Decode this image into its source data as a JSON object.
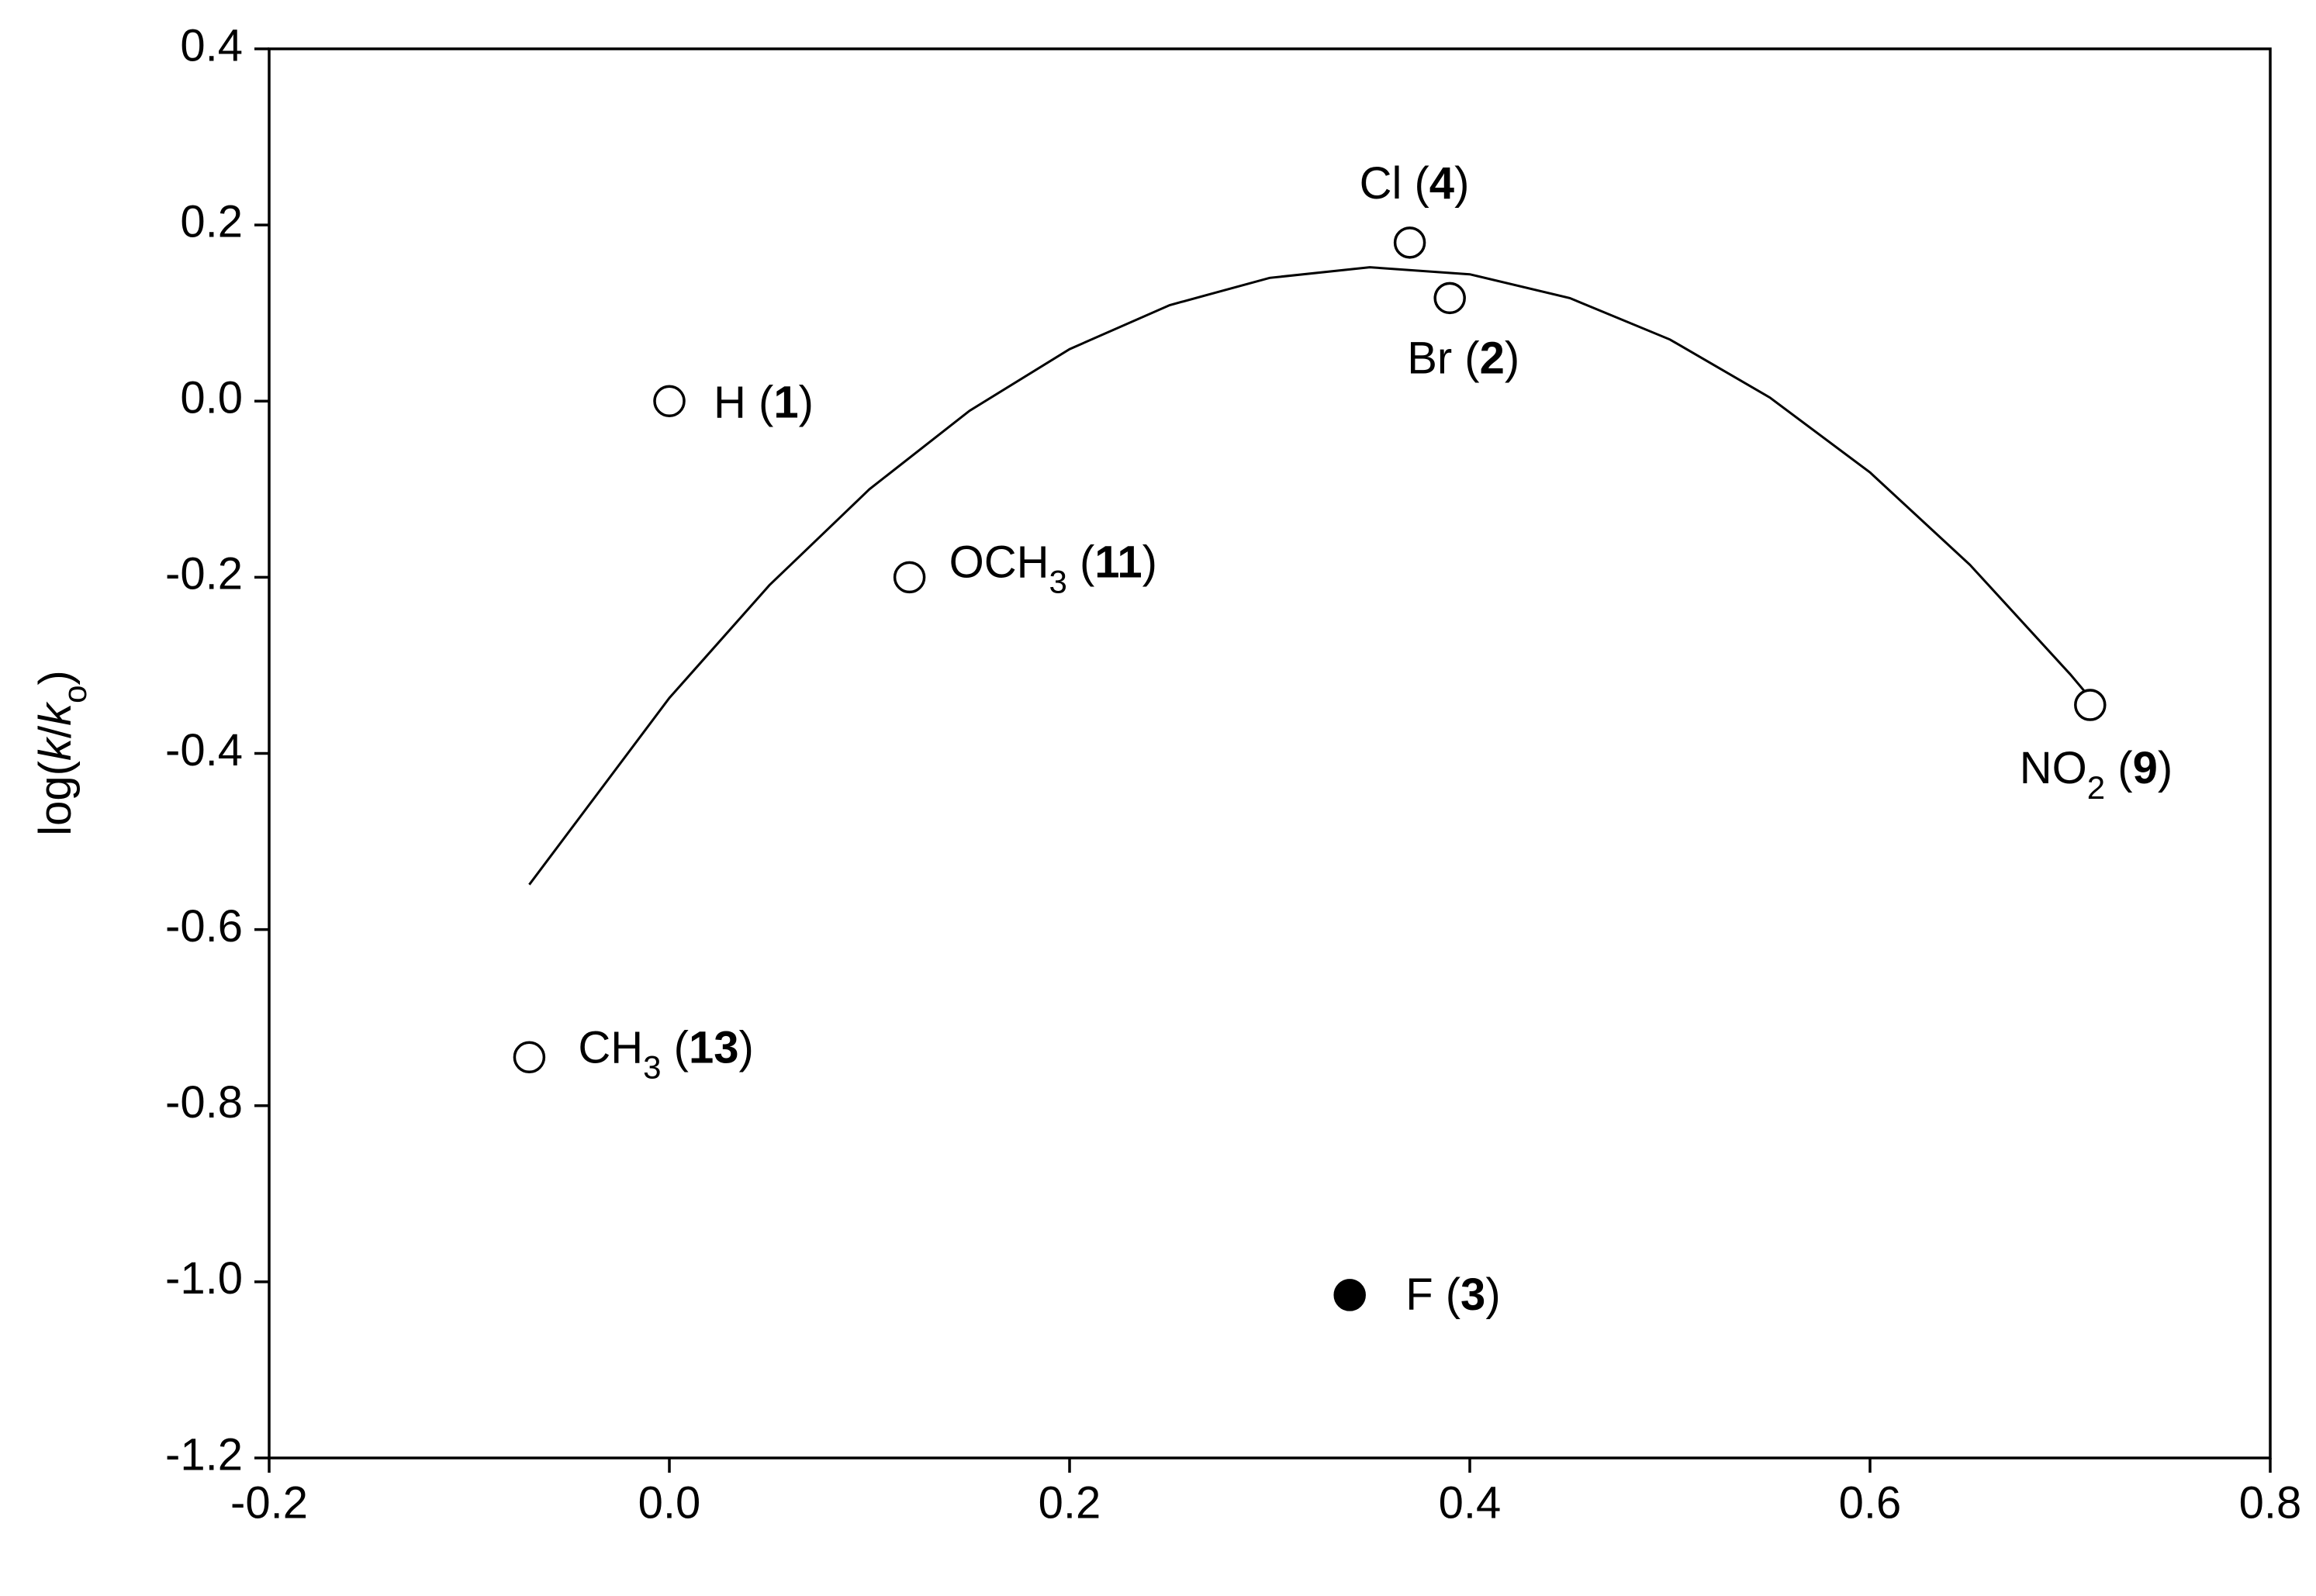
{
  "chart_data": {
    "type": "scatter",
    "ylabel": [
      {
        "t": "log("
      },
      {
        "t": "k",
        "italic": true
      },
      {
        "t": "/"
      },
      {
        "t": "k",
        "italic": true
      },
      {
        "t": "o",
        "sub": true
      },
      {
        "t": ")"
      }
    ],
    "xlim": [
      -0.2,
      0.8
    ],
    "ylim": [
      -1.2,
      0.4
    ],
    "xticks": [
      -0.2,
      {
        "value": 0,
        "label": "0.0"
      },
      0.2,
      0.4,
      0.6,
      0.8
    ],
    "yticks": [
      -1.2,
      {
        "value": -1,
        "label": "-1.0"
      },
      -0.8,
      -0.6,
      -0.4,
      -0.2,
      {
        "value": 0,
        "label": "0.0"
      },
      0.2,
      0.4
    ],
    "color": "#000000",
    "points": {
      "x": [
        0.0,
        0.39,
        0.34,
        0.37,
        0.71,
        0.12,
        -0.07
      ],
      "values": [
        0.0,
        0.117,
        -1.015,
        0.18,
        -0.345,
        -0.2,
        -0.745
      ],
      "filled": [
        false,
        false,
        true,
        false,
        false,
        false,
        false
      ],
      "labels": [
        [
          {
            "t": "H ("
          },
          {
            "t": "1",
            "bold": true
          },
          {
            "t": ")"
          }
        ],
        [
          {
            "t": "Br ("
          },
          {
            "t": "2",
            "bold": true
          },
          {
            "t": ")"
          }
        ],
        [
          {
            "t": "F ("
          },
          {
            "t": "3",
            "bold": true
          },
          {
            "t": ")"
          }
        ],
        [
          {
            "t": "Cl ("
          },
          {
            "t": "4",
            "bold": true
          },
          {
            "t": ")"
          }
        ],
        [
          {
            "t": "NO"
          },
          {
            "t": "2",
            "sub": true
          },
          {
            "t": " ("
          },
          {
            "t": "9",
            "bold": true
          },
          {
            "t": ")"
          }
        ],
        [
          {
            "t": "OCH"
          },
          {
            "t": "3",
            "sub": true
          },
          {
            "t": " ("
          },
          {
            "t": "11",
            "bold": true
          },
          {
            "t": ")"
          }
        ],
        [
          {
            "t": "CH"
          },
          {
            "t": "3",
            "sub": true
          },
          {
            "t": " ("
          },
          {
            "t": "13",
            "bold": true
          },
          {
            "t": ")"
          }
        ]
      ]
    },
    "curve": {
      "x": [
        -0.07,
        0.0,
        0.05,
        0.1,
        0.15,
        0.2,
        0.25,
        0.3,
        0.35,
        0.4,
        0.45,
        0.5,
        0.55,
        0.6,
        0.65,
        0.7,
        0.71
      ],
      "values": [
        -0.549,
        -0.337,
        -0.209,
        -0.1,
        -0.011,
        0.059,
        0.109,
        0.14,
        0.152,
        0.144,
        0.117,
        0.07,
        0.004,
        -0.081,
        -0.186,
        -0.31,
        -0.337
      ]
    }
  }
}
